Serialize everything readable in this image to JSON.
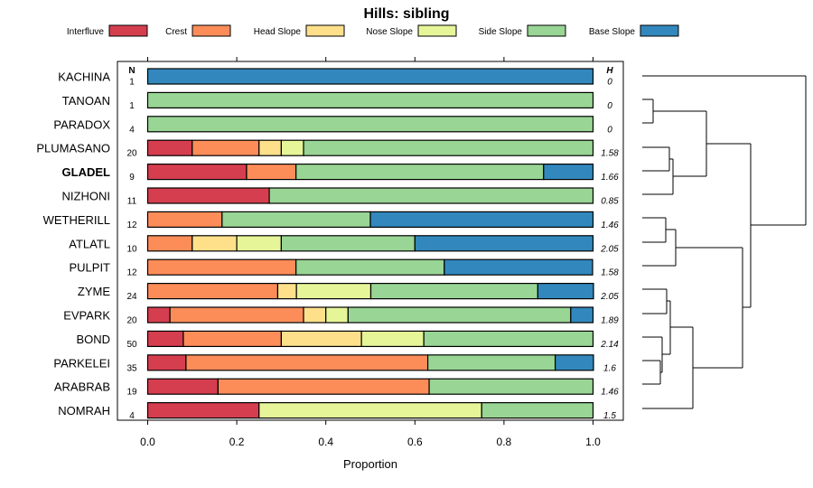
{
  "chart_data": {
    "type": "bar",
    "stacked": true,
    "orientation": "horizontal",
    "title": "Hills: sibling",
    "xlabel": "Proportion",
    "xlim": [
      0,
      1
    ],
    "xticks": [
      0.0,
      0.2,
      0.4,
      0.6,
      0.8,
      1.0
    ],
    "xtick_labels": [
      "0.0",
      "0.2",
      "0.4",
      "0.6",
      "0.8",
      "1.0"
    ],
    "n_header": "N",
    "h_header": "H",
    "legend": [
      {
        "name": "Interfluve",
        "color": "#D53E4F"
      },
      {
        "name": "Crest",
        "color": "#FC8D59"
      },
      {
        "name": "Head Slope",
        "color": "#FEE08B"
      },
      {
        "name": "Nose Slope",
        "color": "#E6F598"
      },
      {
        "name": "Side Slope",
        "color": "#99D594"
      },
      {
        "name": "Base Slope",
        "color": "#3288BD"
      }
    ],
    "rows": [
      {
        "label": "KACHINA",
        "n": "1",
        "h": "0",
        "values": [
          0,
          0,
          0,
          0,
          0,
          1.0
        ]
      },
      {
        "label": "TANOAN",
        "n": "1",
        "h": "0",
        "values": [
          0,
          0,
          0,
          0,
          1.0,
          0
        ]
      },
      {
        "label": "PARADOX",
        "n": "4",
        "h": "0",
        "values": [
          0,
          0,
          0,
          0,
          1.0,
          0
        ]
      },
      {
        "label": "PLUMASANO",
        "n": "20",
        "h": "1.58",
        "values": [
          0.1,
          0.15,
          0.05,
          0.05,
          0.65,
          0
        ]
      },
      {
        "label": "GLADEL",
        "n": "9",
        "h": "1.66",
        "values": [
          0.222,
          0.111,
          0,
          0,
          0.556,
          0.111
        ],
        "bold": true
      },
      {
        "label": "NIZHONI",
        "n": "11",
        "h": "0.85",
        "values": [
          0.273,
          0,
          0,
          0,
          0.727,
          0
        ]
      },
      {
        "label": "WETHERILL",
        "n": "12",
        "h": "1.46",
        "values": [
          0,
          0.167,
          0,
          0,
          0.333,
          0.5
        ]
      },
      {
        "label": "ATLATL",
        "n": "10",
        "h": "2.05",
        "values": [
          0,
          0.1,
          0.1,
          0.1,
          0.3,
          0.4
        ]
      },
      {
        "label": "PULPIT",
        "n": "12",
        "h": "1.58",
        "values": [
          0,
          0.333,
          0,
          0,
          0.333,
          0.333
        ]
      },
      {
        "label": "ZYME",
        "n": "24",
        "h": "2.05",
        "values": [
          0,
          0.292,
          0.042,
          0.167,
          0.375,
          0.125
        ]
      },
      {
        "label": "EVPARK",
        "n": "20",
        "h": "1.89",
        "values": [
          0.05,
          0.3,
          0.05,
          0.05,
          0.5,
          0.05
        ]
      },
      {
        "label": "BOND",
        "n": "50",
        "h": "2.14",
        "values": [
          0.08,
          0.22,
          0.18,
          0.14,
          0.38,
          0
        ]
      },
      {
        "label": "PARKELEI",
        "n": "35",
        "h": "1.6",
        "values": [
          0.086,
          0.543,
          0,
          0,
          0.286,
          0.086
        ]
      },
      {
        "label": "ARABRAB",
        "n": "19",
        "h": "1.46",
        "values": [
          0.158,
          0.474,
          0,
          0,
          0.368,
          0
        ]
      },
      {
        "label": "NOMRAH",
        "n": "4",
        "h": "1.5",
        "values": [
          0.25,
          0,
          0,
          0.5,
          0.25,
          0
        ]
      }
    ]
  }
}
